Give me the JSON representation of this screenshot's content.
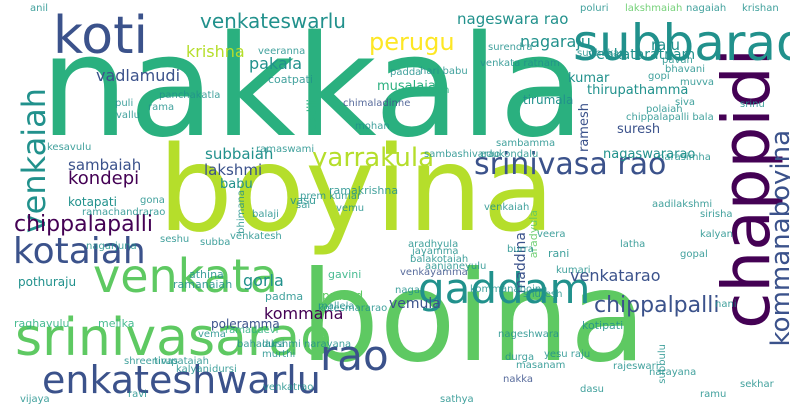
{
  "colors": {
    "background": "#ffffff",
    "palette": [
      "#440154",
      "#3b528b",
      "#21918c",
      "#2ab07f",
      "#5ec962",
      "#b5de2b",
      "#fde725"
    ]
  },
  "words": [
    {
      "id": "nakkala",
      "text": "nakkala"
    },
    {
      "id": "boyina",
      "text": "boyina"
    },
    {
      "id": "boina",
      "text": "boina"
    },
    {
      "id": "srinivasarao",
      "text": "srinivasarao"
    },
    {
      "id": "chappidi",
      "text": "chappidi"
    },
    {
      "id": "subbarao",
      "text": "subbarao"
    },
    {
      "id": "koti",
      "text": "koti"
    },
    {
      "id": "venkata",
      "text": "venkata"
    },
    {
      "id": "enkateshwarlu",
      "text": "enkateshwarlu"
    },
    {
      "id": "gaddam",
      "text": "gaddam"
    },
    {
      "id": "rao",
      "text": "rao"
    },
    {
      "id": "kotaiah",
      "text": "kotaiah"
    },
    {
      "id": "srinivasa-rao",
      "text": "srinivasa rao"
    },
    {
      "id": "yarrakula",
      "text": "yarrakula"
    },
    {
      "id": "kommanaboyina",
      "text": "kommanaboyina"
    },
    {
      "id": "venkaiah",
      "text": "venkaiah"
    },
    {
      "id": "chippalapalli-left",
      "text": "chippalapalli"
    },
    {
      "id": "chippalpalli",
      "text": "chippalpalli"
    },
    {
      "id": "venkateswarlu",
      "text": "venkateswarlu"
    },
    {
      "id": "perugu",
      "text": "perugu"
    },
    {
      "id": "nageswara-rao",
      "text": "nageswara rao"
    },
    {
      "id": "nagaraju",
      "text": "nagaraju"
    },
    {
      "id": "raju",
      "text": "raju"
    },
    {
      "id": "pakala",
      "text": "pakala"
    },
    {
      "id": "krishna",
      "text": "krishna"
    },
    {
      "id": "vadlamudi",
      "text": "vadlamudi"
    },
    {
      "id": "venkataratnam",
      "text": "venkataratnam"
    },
    {
      "id": "kumar",
      "text": "kumar"
    },
    {
      "id": "coatpati",
      "text": "coatpati"
    },
    {
      "id": "musalaiah",
      "text": "musalaiah"
    },
    {
      "id": "thirupathamma",
      "text": "thirupathamma"
    },
    {
      "id": "tirumala",
      "text": "tirumala"
    },
    {
      "id": "suresh",
      "text": "suresh"
    },
    {
      "id": "ramesh",
      "text": "ramesh"
    },
    {
      "id": "nagaswararao",
      "text": "nagaswararao"
    },
    {
      "id": "sambaiah",
      "text": "sambaiah"
    },
    {
      "id": "kondepi",
      "text": "kondepi"
    },
    {
      "id": "subbaiah",
      "text": "subbaiah"
    },
    {
      "id": "lakshmi",
      "text": "lakshmi"
    },
    {
      "id": "babu",
      "text": "babu"
    },
    {
      "id": "kotapati",
      "text": "kotapati"
    },
    {
      "id": "ramachandrarao",
      "text": "ramachandrarao"
    },
    {
      "id": "gorla",
      "text": "gorla"
    },
    {
      "id": "pothuraju",
      "text": "pothuraju"
    },
    {
      "id": "venkatarao",
      "text": "venkatarao"
    },
    {
      "id": "vemula",
      "text": "vemula"
    },
    {
      "id": "kommana",
      "text": "kommana"
    },
    {
      "id": "poleramma",
      "text": "poleramma"
    },
    {
      "id": "kotesmararao",
      "text": "kotesmararao"
    },
    {
      "id": "raghavulu",
      "text": "raghavulu"
    },
    {
      "id": "melika",
      "text": "melika"
    },
    {
      "id": "maddina",
      "text": "maddina"
    },
    {
      "id": "aradyula",
      "text": "aradyula"
    },
    {
      "id": "podili",
      "text": "podili"
    },
    {
      "id": "ramaswami",
      "text": "ramaswami"
    },
    {
      "id": "ramakrishna",
      "text": "ramakrishna"
    },
    {
      "id": "vasu",
      "text": "vasu"
    },
    {
      "id": "aradhyula",
      "text": "aradhyula"
    },
    {
      "id": "aanjaneyulu",
      "text": "aanjaneyulu"
    },
    {
      "id": "rani",
      "text": "rani"
    },
    {
      "id": "athina",
      "text": "athina"
    },
    {
      "id": "ramanaiah",
      "text": "ramanaiah"
    },
    {
      "id": "padma",
      "text": "padma"
    },
    {
      "id": "prasad",
      "text": "prasad"
    },
    {
      "id": "gavini",
      "text": "gavini"
    },
    {
      "id": "venkayamma",
      "text": "venkayamma"
    },
    {
      "id": "ramadaevi",
      "text": "ramadaevi"
    },
    {
      "id": "nageshwara",
      "text": "nageshwara"
    },
    {
      "id": "kotipati",
      "text": "kotipati"
    },
    {
      "id": "shreenivas",
      "text": "shreenivas"
    },
    {
      "id": "tirupataiah",
      "text": "tirupataiah"
    },
    {
      "id": "nakka",
      "text": "nakka"
    },
    {
      "id": "venkatrao",
      "text": "venkatrao"
    },
    {
      "id": "kalyani",
      "text": "kalyani"
    },
    {
      "id": "dursi",
      "text": "dursi"
    },
    {
      "id": "durga",
      "text": "durga"
    },
    {
      "id": "masanam",
      "text": "masanam"
    },
    {
      "id": "yesu-raju",
      "text": "yesu raju"
    },
    {
      "id": "lakshmaiah",
      "text": "lakshmaiah"
    },
    {
      "id": "somaiah",
      "text": "somaiah"
    },
    {
      "id": "chimaladinne",
      "text": "chimaladinne"
    },
    {
      "id": "panchakatla",
      "text": "panchakatla"
    },
    {
      "id": "rama",
      "text": "rama"
    },
    {
      "id": "puli",
      "text": "puli"
    },
    {
      "id": "vallu",
      "text": "vallu"
    },
    {
      "id": "veeranna",
      "text": "veeranna"
    },
    {
      "id": "kesavulu",
      "text": "kesavulu"
    },
    {
      "id": "sai",
      "text": "sai"
    },
    {
      "id": "vemu",
      "text": "vemu"
    },
    {
      "id": "balaji",
      "text": "balaji"
    },
    {
      "id": "naga",
      "text": "naga"
    },
    {
      "id": "pavan",
      "text": "pavan"
    },
    {
      "id": "bhavani",
      "text": "bhavani"
    },
    {
      "id": "gopi",
      "text": "gopi"
    },
    {
      "id": "muvva",
      "text": "muvva"
    },
    {
      "id": "siva",
      "text": "siva"
    },
    {
      "id": "polaiah",
      "text": "polaiah"
    },
    {
      "id": "chippalapalli-bala",
      "text": "chippalapalli bala"
    },
    {
      "id": "narasimha",
      "text": "narasimha"
    },
    {
      "id": "sambamma",
      "text": "sambamma"
    },
    {
      "id": "edukondalu",
      "text": "edukondalu"
    },
    {
      "id": "venkata-ratnam",
      "text": "venkata ratnam"
    },
    {
      "id": "padda",
      "text": "padda"
    },
    {
      "id": "hari-babu",
      "text": "hari babu"
    },
    {
      "id": "surendra",
      "text": "surendra"
    },
    {
      "id": "poluri",
      "text": "poluri"
    },
    {
      "id": "sudhakar",
      "text": "sudhakar"
    },
    {
      "id": "krishan",
      "text": "krishan"
    },
    {
      "id": "nagaiah",
      "text": "nagaiah"
    },
    {
      "id": "burra",
      "text": "burra"
    },
    {
      "id": "veera",
      "text": "veera"
    },
    {
      "id": "jayamma",
      "text": "jayamma"
    },
    {
      "id": "balakotaiah",
      "text": "balakotaiah"
    },
    {
      "id": "nagarjuna",
      "text": "nagarjuna"
    },
    {
      "id": "subbulu",
      "text": "subbulu"
    },
    {
      "id": "narayana",
      "text": "narayana"
    },
    {
      "id": "rajeswari",
      "text": "rajeswari"
    },
    {
      "id": "mallela",
      "text": "mallela"
    },
    {
      "id": "murthi",
      "text": "murthi"
    },
    {
      "id": "bahadura",
      "text": "bahadura"
    },
    {
      "id": "aadilakshmi",
      "text": "aadilakshmi"
    },
    {
      "id": "kumari",
      "text": "kumari"
    },
    {
      "id": "shuresh",
      "text": "shuresh"
    },
    {
      "id": "venkaiah-small",
      "text": "venkaiah"
    },
    {
      "id": "venkatesh",
      "text": "venkatesh"
    },
    {
      "id": "lakshmi-narayana",
      "text": "lakshmi narayana"
    },
    {
      "id": "sambashivarao",
      "text": "sambashivarao"
    },
    {
      "id": "gona",
      "text": "gona"
    },
    {
      "id": "subba",
      "text": "subba"
    },
    {
      "id": "bhimana",
      "text": "bhimana"
    },
    {
      "id": "sirisha",
      "text": "sirisha"
    },
    {
      "id": "prem-kumar",
      "text": "prem kumar"
    },
    {
      "id": "kommanaboina",
      "text": "kommanaboina"
    },
    {
      "id": "vema",
      "text": "vema"
    },
    {
      "id": "srinu",
      "text": "srinu"
    },
    {
      "id": "ravi",
      "text": "ravi"
    },
    {
      "id": "dasu",
      "text": "dasu"
    },
    {
      "id": "ramu",
      "text": "ramu"
    },
    {
      "id": "anil",
      "text": "anil"
    },
    {
      "id": "mohan",
      "text": "mohan"
    },
    {
      "id": "sathya",
      "text": "sathya"
    },
    {
      "id": "gopal",
      "text": "gopal"
    },
    {
      "id": "kalyan",
      "text": "kalyan"
    },
    {
      "id": "seshu",
      "text": "seshu"
    },
    {
      "id": "nani",
      "text": "nani"
    },
    {
      "id": "latha",
      "text": "latha"
    },
    {
      "id": "sekhar",
      "text": "sekhar"
    },
    {
      "id": "vijaya",
      "text": "vijaya"
    }
  ]
}
